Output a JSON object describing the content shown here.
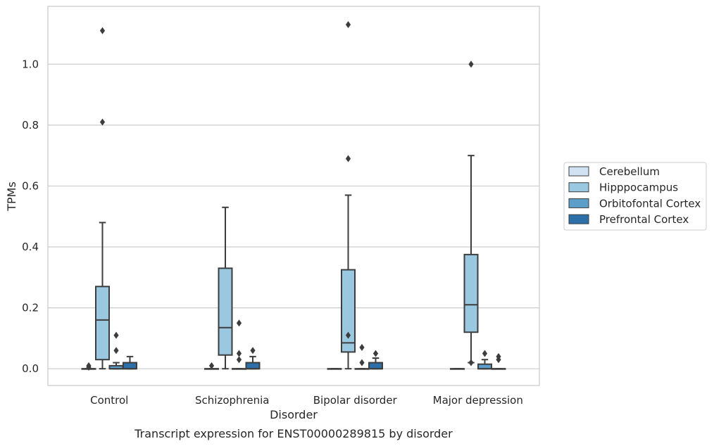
{
  "chart_data": {
    "type": "box",
    "caption": "Transcript expression for ENST00000289815 by disorder",
    "xlabel": "Disorder",
    "ylabel": "TPMs",
    "ylim": [
      -0.055,
      1.19
    ],
    "yticks": [
      0.0,
      0.2,
      0.4,
      0.6,
      0.8,
      1.0
    ],
    "ytick_labels": [
      "0.0",
      "0.2",
      "0.4",
      "0.6",
      "0.8",
      "1.0"
    ],
    "grid": "horizontal",
    "legend_position": "right",
    "categories": [
      "Control",
      "Schizophrenia",
      "Bipolar disorder",
      "Major depression"
    ],
    "series": [
      {
        "name": "Cerebellum",
        "color": "#d1e2f2",
        "boxes": [
          {
            "whislo": 0.0,
            "q1": 0.0,
            "med": 0.0,
            "q3": 0.0,
            "whishi": 0.0,
            "fliers": [
              0.005,
              0.01
            ]
          },
          {
            "whislo": 0.0,
            "q1": 0.0,
            "med": 0.0,
            "q3": 0.0,
            "whishi": 0.0,
            "fliers": [
              0.01
            ]
          },
          {
            "whislo": 0.0,
            "q1": 0.0,
            "med": 0.0,
            "q3": 0.0,
            "whishi": 0.0,
            "fliers": []
          },
          {
            "whislo": 0.0,
            "q1": 0.0,
            "med": 0.0,
            "q3": 0.0,
            "whishi": 0.0,
            "fliers": []
          }
        ]
      },
      {
        "name": "Hipppocampus",
        "color": "#9ac8e0",
        "boxes": [
          {
            "whislo": 0.0,
            "q1": 0.03,
            "med": 0.16,
            "q3": 0.27,
            "whishi": 0.48,
            "fliers": [
              0.81,
              1.11
            ]
          },
          {
            "whislo": 0.0,
            "q1": 0.045,
            "med": 0.135,
            "q3": 0.33,
            "whishi": 0.53,
            "fliers": []
          },
          {
            "whislo": 0.0,
            "q1": 0.055,
            "med": 0.085,
            "q3": 0.325,
            "whishi": 0.57,
            "fliers": [
              0.11,
              0.69,
              1.13
            ]
          },
          {
            "whislo": 0.02,
            "q1": 0.12,
            "med": 0.21,
            "q3": 0.375,
            "whishi": 0.7,
            "fliers": [
              0.02,
              1.0
            ]
          }
        ]
      },
      {
        "name": "Orbitofontal Cortex",
        "color": "#5a9ec9",
        "boxes": [
          {
            "whislo": 0.0,
            "q1": 0.0,
            "med": 0.0,
            "q3": 0.01,
            "whishi": 0.02,
            "fliers": [
              0.06,
              0.11
            ]
          },
          {
            "whislo": 0.0,
            "q1": 0.0,
            "med": 0.0,
            "q3": 0.0,
            "whishi": 0.0,
            "fliers": [
              0.03,
              0.05,
              0.15
            ]
          },
          {
            "whislo": 0.0,
            "q1": 0.0,
            "med": 0.0,
            "q3": 0.0,
            "whishi": 0.0,
            "fliers": [
              0.02,
              0.07
            ]
          },
          {
            "whislo": 0.0,
            "q1": 0.0,
            "med": 0.0,
            "q3": 0.015,
            "whishi": 0.03,
            "fliers": [
              0.05
            ]
          }
        ]
      },
      {
        "name": "Prefrontal Cortex",
        "color": "#2d6fa8",
        "boxes": [
          {
            "whislo": 0.0,
            "q1": 0.0,
            "med": 0.0,
            "q3": 0.02,
            "whishi": 0.04,
            "fliers": []
          },
          {
            "whislo": 0.0,
            "q1": 0.0,
            "med": 0.0,
            "q3": 0.02,
            "whishi": 0.04,
            "fliers": [
              0.06
            ]
          },
          {
            "whislo": 0.0,
            "q1": 0.0,
            "med": 0.0,
            "q3": 0.02,
            "whishi": 0.035,
            "fliers": [
              0.05
            ]
          },
          {
            "whislo": 0.0,
            "q1": 0.0,
            "med": 0.0,
            "q3": 0.0,
            "whishi": 0.0,
            "fliers": [
              0.03,
              0.04
            ]
          }
        ]
      }
    ]
  }
}
